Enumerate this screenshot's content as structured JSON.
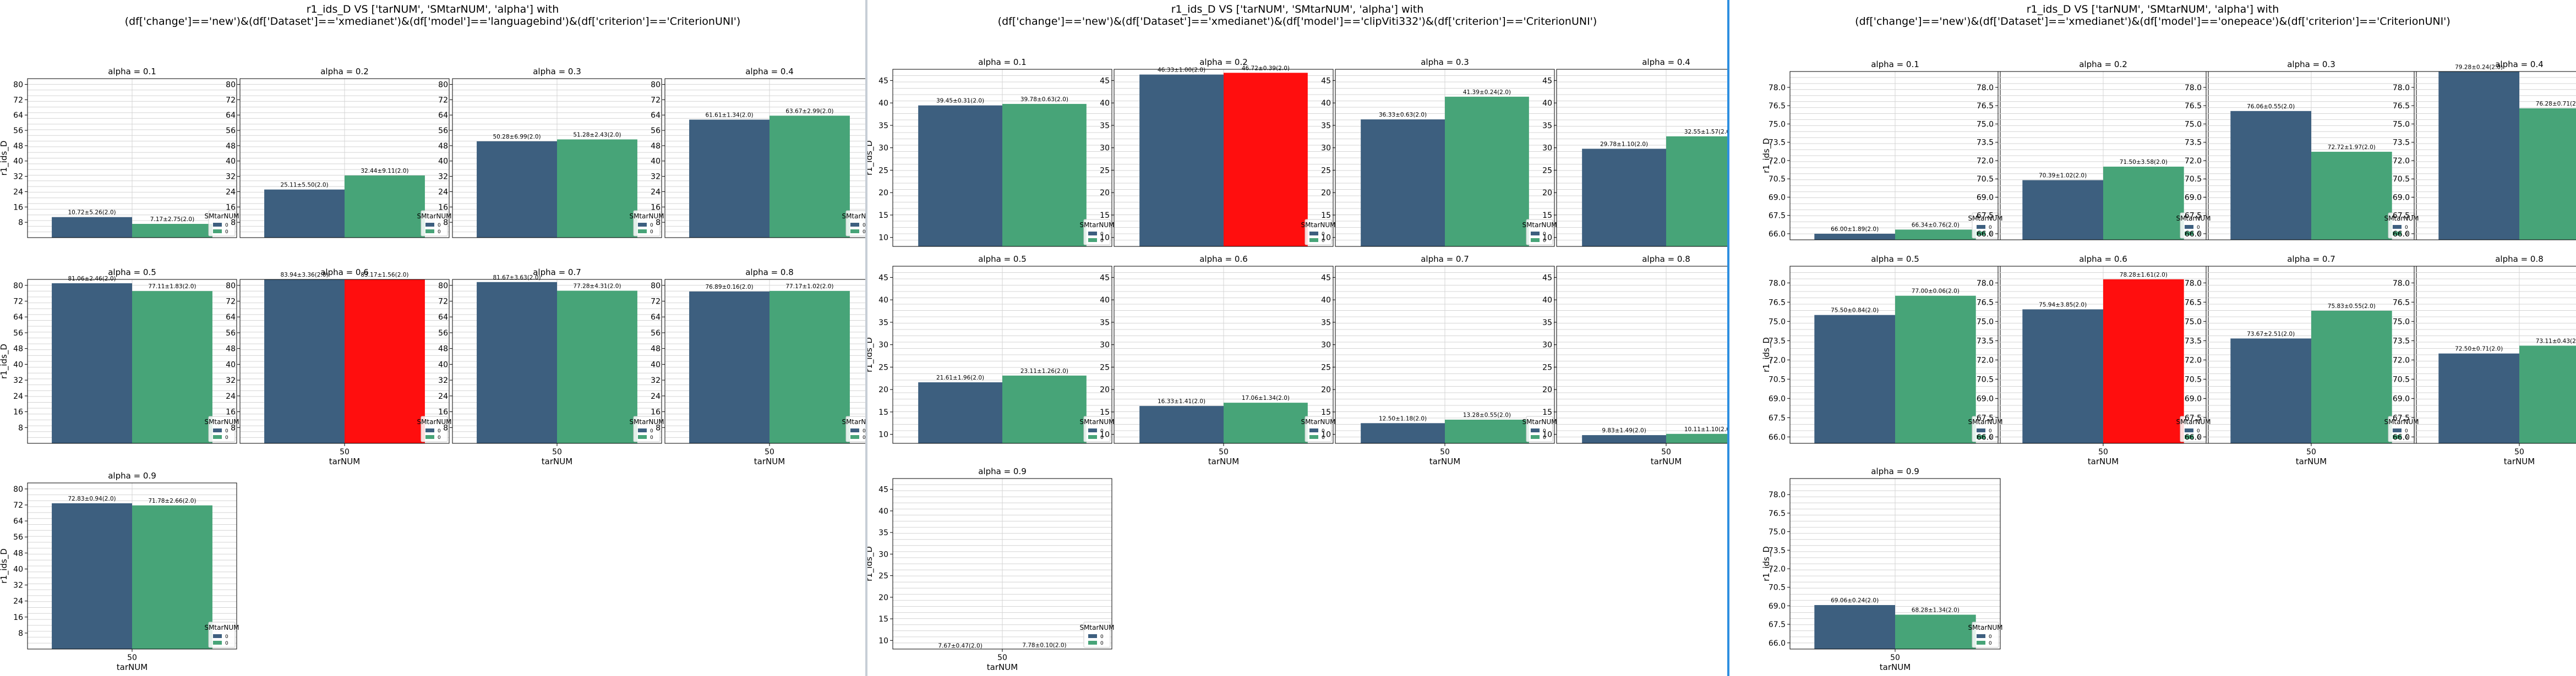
{
  "app": {
    "separator_colors": [
      "#c7ced6",
      "#2e8fe0"
    ]
  },
  "chart_data": [
    {
      "type": "bar",
      "title": "r1_ids_D VS ['tarNUM', 'SMtarNUM', 'alpha'] with\n(df['change']=='new')&(df['Dataset']=='xmedianet')&(df['model']=='languagebind')&(df['criterion']=='CriterionUNI')",
      "xlabel": "tarNUM",
      "ylabel": "r1_ids_D",
      "legend_title": "SMtarNUM",
      "legend_entries": [
        "0",
        "0"
      ],
      "x_tick": "50",
      "ylim": [
        0,
        83
      ],
      "yticks": [
        "8",
        "16",
        "24",
        "32",
        "40",
        "48",
        "56",
        "64",
        "72",
        "80"
      ],
      "colors": {
        "first": "#3d5f7f",
        "second": "#47a478",
        "best": "#ff0e0e"
      },
      "grid": true,
      "panels": [
        {
          "title": "alpha = 0.1",
          "values": [
            10.72,
            7.17
          ],
          "labels": [
            "10.72±5.26(2.0)",
            "7.17±2.75(2.0)"
          ],
          "best": -1
        },
        {
          "title": "alpha = 0.2",
          "values": [
            25.11,
            32.44
          ],
          "labels": [
            "25.11±5.50(2.0)",
            "32.44±9.11(2.0)"
          ],
          "best": -1
        },
        {
          "title": "alpha = 0.3",
          "values": [
            50.28,
            51.28
          ],
          "labels": [
            "50.28±6.99(2.0)",
            "51.28±2.43(2.0)"
          ],
          "best": -1
        },
        {
          "title": "alpha = 0.4",
          "values": [
            61.61,
            63.67
          ],
          "labels": [
            "61.61±1.34(2.0)",
            "63.67±2.99(2.0)"
          ],
          "best": -1
        },
        {
          "title": "alpha = 0.5",
          "values": [
            81.06,
            77.11
          ],
          "labels": [
            "81.06±2.46(2.0)",
            "77.11±1.83(2.0)"
          ],
          "best": -1
        },
        {
          "title": "alpha = 0.6",
          "values": [
            83.94,
            83.17
          ],
          "labels": [
            "83.94±3.36(2.0)",
            "83.17±1.56(2.0)"
          ],
          "best": 1
        },
        {
          "title": "alpha = 0.7",
          "values": [
            81.67,
            77.28
          ],
          "labels": [
            "81.67±3.63(2.0)",
            "77.28±4.31(2.0)"
          ],
          "best": -1
        },
        {
          "title": "alpha = 0.8",
          "values": [
            76.89,
            77.17
          ],
          "labels": [
            "76.89±0.16(2.0)",
            "77.17±1.02(2.0)"
          ],
          "best": -1
        },
        {
          "title": "alpha = 0.9",
          "values": [
            72.83,
            71.78
          ],
          "labels": [
            "72.83±0.94(2.0)",
            "71.78±2.66(2.0)"
          ],
          "best": -1
        }
      ]
    },
    {
      "type": "bar",
      "title": "r1_ids_D VS ['tarNUM', 'SMtarNUM', 'alpha'] with\n(df['change']=='new')&(df['Dataset']=='xmedianet')&(df['model']=='clipViti332')&(df['criterion']=='CriterionUNI')",
      "xlabel": "tarNUM",
      "ylabel": "r1_ids_D",
      "legend_title": "SMtarNUM",
      "legend_entries": [
        "0",
        "0"
      ],
      "x_tick": "50",
      "ylim": [
        8,
        47.5
      ],
      "yticks": [
        "10",
        "15",
        "20",
        "25",
        "30",
        "35",
        "40",
        "45"
      ],
      "colors": {
        "first": "#3d5f7f",
        "second": "#47a478",
        "best": "#ff0e0e"
      },
      "grid": true,
      "panels": [
        {
          "title": "alpha = 0.1",
          "values": [
            39.45,
            39.78
          ],
          "labels": [
            "39.45±0.31(2.0)",
            "39.78±0.63(2.0)"
          ],
          "best": -1
        },
        {
          "title": "alpha = 0.2",
          "values": [
            46.33,
            46.72
          ],
          "labels": [
            "46.33±1.00(2.0)",
            "46.72±0.39(2.0)"
          ],
          "best": 1
        },
        {
          "title": "alpha = 0.3",
          "values": [
            36.33,
            41.39
          ],
          "labels": [
            "36.33±0.63(2.0)",
            "41.39±0.24(2.0)"
          ],
          "best": -1
        },
        {
          "title": "alpha = 0.4",
          "values": [
            29.78,
            32.55
          ],
          "labels": [
            "29.78±1.10(2.0)",
            "32.55±1.57(2.0)"
          ],
          "best": -1
        },
        {
          "title": "alpha = 0.5",
          "values": [
            21.61,
            23.11
          ],
          "labels": [
            "21.61±1.96(2.0)",
            "23.11±1.26(2.0)"
          ],
          "best": -1
        },
        {
          "title": "alpha = 0.6",
          "values": [
            16.33,
            17.06
          ],
          "labels": [
            "16.33±1.41(2.0)",
            "17.06±1.34(2.0)"
          ],
          "best": -1
        },
        {
          "title": "alpha = 0.7",
          "values": [
            12.5,
            13.28
          ],
          "labels": [
            "12.50±1.18(2.0)",
            "13.28±0.55(2.0)"
          ],
          "best": -1
        },
        {
          "title": "alpha = 0.8",
          "values": [
            9.83,
            10.11
          ],
          "labels": [
            "9.83±1.49(2.0)",
            "10.11±1.10(2.0)"
          ],
          "best": -1
        },
        {
          "title": "alpha = 0.9",
          "values": [
            7.67,
            7.78
          ],
          "labels": [
            "7.67±0.47(2.0)",
            "7.78±0.10(2.0)"
          ],
          "best": -1
        }
      ]
    },
    {
      "type": "bar",
      "title": "r1_ids_D VS ['tarNUM', 'SMtarNUM', 'alpha'] with\n(df['change']=='new')&(df['Dataset']=='xmedianet')&(df['model']=='onepeace')&(df['criterion']=='CriterionUNI')",
      "xlabel": "tarNUM",
      "ylabel": "r1_ids_D",
      "legend_title": "SMtarNUM",
      "legend_entries": [
        "0",
        "0"
      ],
      "x_tick": "50",
      "ylim": [
        65.5,
        79.3
      ],
      "yticks": [
        "66.0",
        "67.5",
        "69.0",
        "70.5",
        "72.0",
        "73.5",
        "75.0",
        "76.5",
        "78.0"
      ],
      "colors": {
        "first": "#3d5f7f",
        "second": "#47a478",
        "best": "#ff0e0e"
      },
      "grid": true,
      "panels": [
        {
          "title": "alpha = 0.1",
          "values": [
            66.0,
            66.34
          ],
          "labels": [
            "66.00±1.89(2.0)",
            "66.34±0.76(2.0)"
          ],
          "best": -1
        },
        {
          "title": "alpha = 0.2",
          "values": [
            70.39,
            71.5
          ],
          "labels": [
            "70.39±1.02(2.0)",
            "71.50±3.58(2.0)"
          ],
          "best": -1
        },
        {
          "title": "alpha = 0.3",
          "values": [
            76.06,
            72.72
          ],
          "labels": [
            "76.06±0.55(2.0)",
            "72.72±1.97(2.0)"
          ],
          "best": -1
        },
        {
          "title": "alpha = 0.4",
          "values": [
            79.28,
            76.28
          ],
          "labels": [
            "79.28±0.24(2.0)",
            "76.28±0.71(2.0)"
          ],
          "best": -1
        },
        {
          "title": "alpha = 0.5",
          "values": [
            75.5,
            77.0
          ],
          "labels": [
            "75.50±0.84(2.0)",
            "77.00±0.06(2.0)"
          ],
          "best": -1
        },
        {
          "title": "alpha = 0.6",
          "values": [
            75.94,
            78.28
          ],
          "labels": [
            "75.94±3.85(2.0)",
            "78.28±1.61(2.0)"
          ],
          "best": 1
        },
        {
          "title": "alpha = 0.7",
          "values": [
            73.67,
            75.83
          ],
          "labels": [
            "73.67±2.51(2.0)",
            "75.83±0.55(2.0)"
          ],
          "best": -1
        },
        {
          "title": "alpha = 0.8",
          "values": [
            72.5,
            73.11
          ],
          "labels": [
            "72.50±0.71(2.0)",
            "73.11±0.43(2.0)"
          ],
          "best": -1
        },
        {
          "title": "alpha = 0.9",
          "values": [
            69.06,
            68.28
          ],
          "labels": [
            "69.06±0.24(2.0)",
            "68.28±1.34(2.0)"
          ],
          "best": -1
        }
      ]
    }
  ]
}
